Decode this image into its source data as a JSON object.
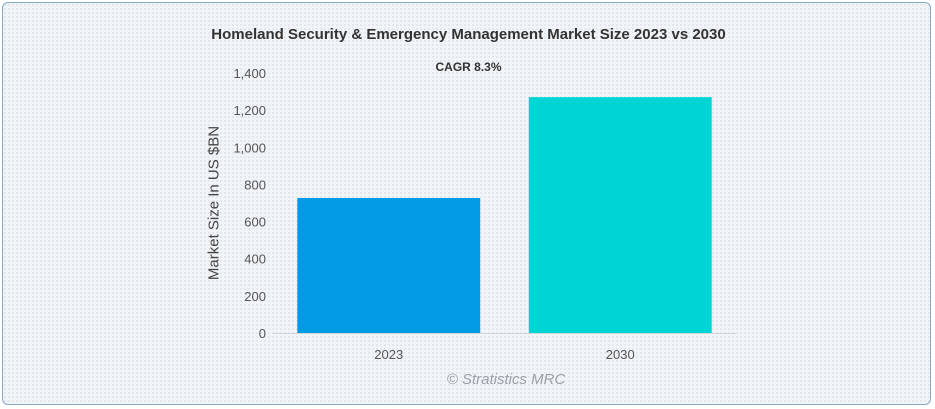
{
  "chart_data": {
    "type": "bar",
    "title": "Homeland Security & Emergency Management Market Size 2023 vs 2030",
    "subtitle": "CAGR 8.3%",
    "xlabel": "",
    "ylabel": "Market Size In US $BN",
    "categories": [
      "2023",
      "2030"
    ],
    "values": [
      727,
      1270
    ],
    "ylim": [
      0,
      1400
    ],
    "yticks": [
      "0",
      "200",
      "400",
      "600",
      "800",
      "1,000",
      "1,200",
      "1,400"
    ],
    "colors": [
      "#039be5",
      "#00d4d4"
    ],
    "grid": false,
    "legend": "none"
  },
  "watermark": "© Stratistics MRC"
}
